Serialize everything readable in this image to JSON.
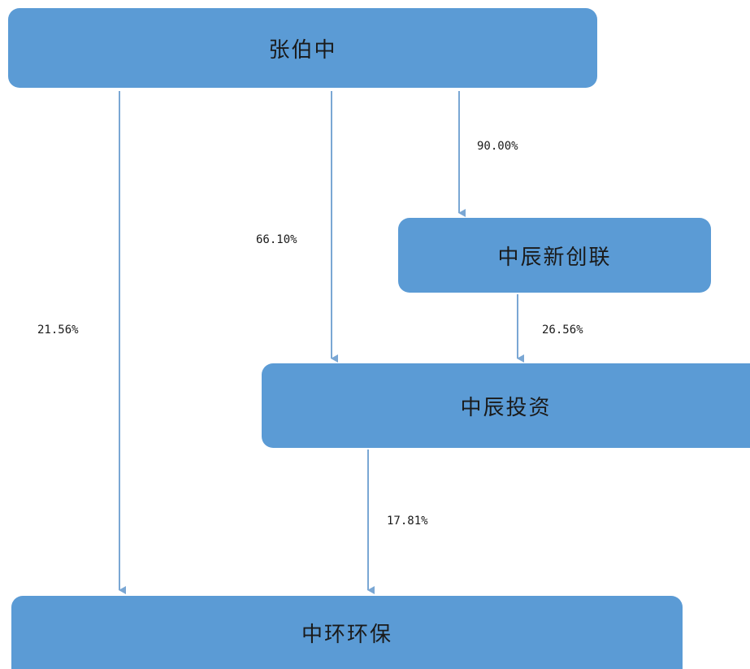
{
  "nodes": {
    "zhang": "张伯中",
    "xinchuanglian": "中辰新创联",
    "investment": "中辰投资",
    "huanbao": "中环环保"
  },
  "edges": [
    {
      "from": "张伯中",
      "to": "中辰新创联",
      "label": "90.00%"
    },
    {
      "from": "张伯中",
      "to": "中辰投资",
      "label": "66.10%"
    },
    {
      "from": "张伯中",
      "to": "中环环保",
      "label": "21.56%"
    },
    {
      "from": "中辰新创联",
      "to": "中辰投资",
      "label": "26.56%"
    },
    {
      "from": "中辰投资",
      "to": "中环环保",
      "label": "17.81%"
    }
  ],
  "colors": {
    "node_fill": "#5b9bd5",
    "arrow": "#7aa7d4"
  }
}
